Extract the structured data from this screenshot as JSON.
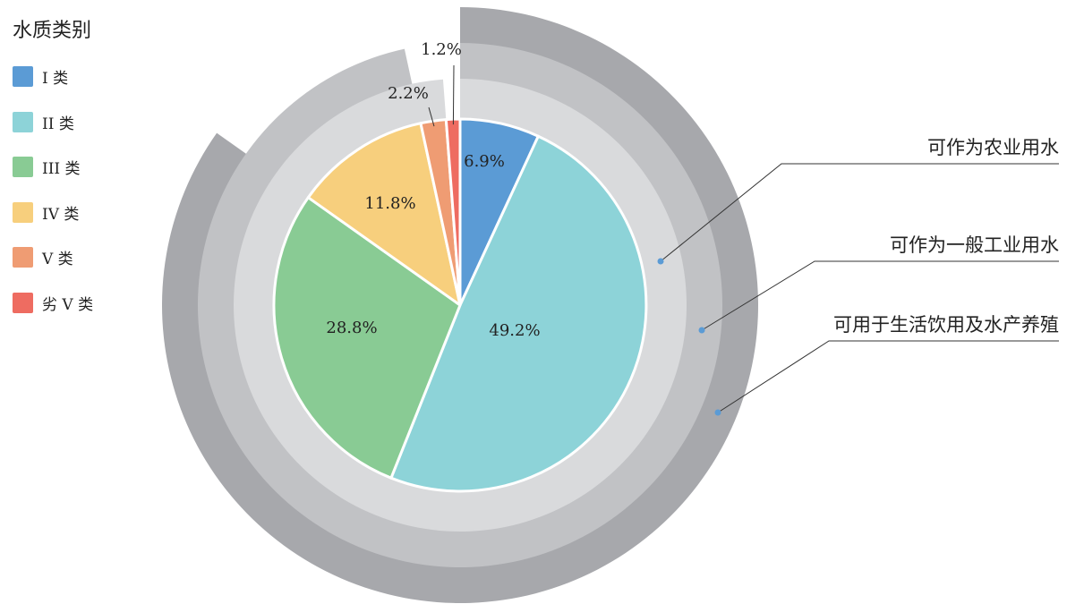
{
  "legend": {
    "title": "水质类别",
    "items": [
      {
        "label": "I 类",
        "color": "#5b9bd5"
      },
      {
        "label": "II 类",
        "color": "#8dd3d8"
      },
      {
        "label": "III 类",
        "color": "#89cb94"
      },
      {
        "label": "IV 类",
        "color": "#f7cf7d"
      },
      {
        "label": "V 类",
        "color": "#ef9c73"
      },
      {
        "label": "劣 V 类",
        "color": "#ee6c61"
      }
    ]
  },
  "chart_data": {
    "type": "pie",
    "legend_position": "top-left",
    "title": "",
    "slices": [
      {
        "label": "I 类",
        "value": 6.9,
        "value_label": "6.9%",
        "color": "#5b9bd5"
      },
      {
        "label": "II 类",
        "value": 49.2,
        "value_label": "49.2%",
        "color": "#8dd3d8"
      },
      {
        "label": "III 类",
        "value": 28.8,
        "value_label": "28.8%",
        "color": "#89cb94"
      },
      {
        "label": "IV 类",
        "value": 11.8,
        "value_label": "11.8%",
        "color": "#f7cf7d"
      },
      {
        "label": "V 类",
        "value": 2.2,
        "value_label": "2.2%",
        "color": "#ef9c73"
      },
      {
        "label": "劣 V 类",
        "value": 1.2,
        "value_label": "1.2%",
        "color": "#ee6c61"
      }
    ],
    "rings": [
      {
        "label": "可作为农业用水",
        "value": 98.8,
        "color": "#d9dadc"
      },
      {
        "label": "可作为一般工业用水",
        "value": 96.6,
        "color": "#c1c2c5"
      },
      {
        "label": "可用于生活饮用及水产养殖",
        "value": 84.8,
        "color": "#a7a8ac"
      }
    ],
    "marker_color": "#5b9bd5"
  }
}
